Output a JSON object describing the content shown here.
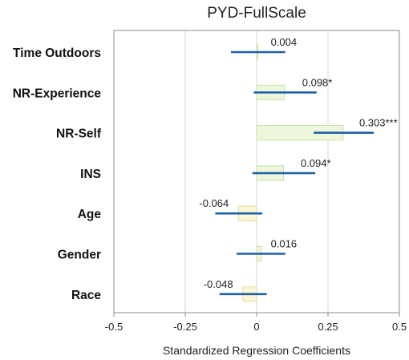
{
  "chart_data": {
    "type": "bar",
    "orientation": "horizontal",
    "title": "PYD-FullScale",
    "xlabel": "Standardized Regression Coefficients",
    "xlim": [
      -0.5,
      0.5
    ],
    "xticks": [
      -0.5,
      -0.25,
      0,
      0.25,
      0.5
    ],
    "xtick_labels": [
      "-0.5",
      "-0.25",
      "0",
      "0.25",
      "0.5"
    ],
    "grid": "vertical",
    "categories": [
      "Time Outdoors",
      "NR-Experience",
      "NR-Self",
      "INS",
      "Age",
      "Gender",
      "Race"
    ],
    "values": [
      0.004,
      0.098,
      0.303,
      0.094,
      -0.064,
      0.016,
      -0.048
    ],
    "value_labels": [
      "0.004",
      "0.098*",
      "0.303***",
      "0.094*",
      "-0.064",
      "0.016",
      "-0.048"
    ],
    "ci_low": [
      -0.09,
      -0.01,
      0.2,
      -0.015,
      -0.145,
      -0.07,
      -0.13
    ],
    "ci_high": [
      0.1,
      0.21,
      0.41,
      0.205,
      0.02,
      0.1,
      0.035
    ],
    "colors": {
      "positive_fill": "#eef7dc",
      "positive_stroke": "#c8dfa8",
      "negative_fill": "#fbf6d4",
      "negative_stroke": "#e6dca0",
      "interval": "#1f5fa8",
      "grid": "#d4d4d4",
      "frame": "#8c8c8c"
    }
  }
}
